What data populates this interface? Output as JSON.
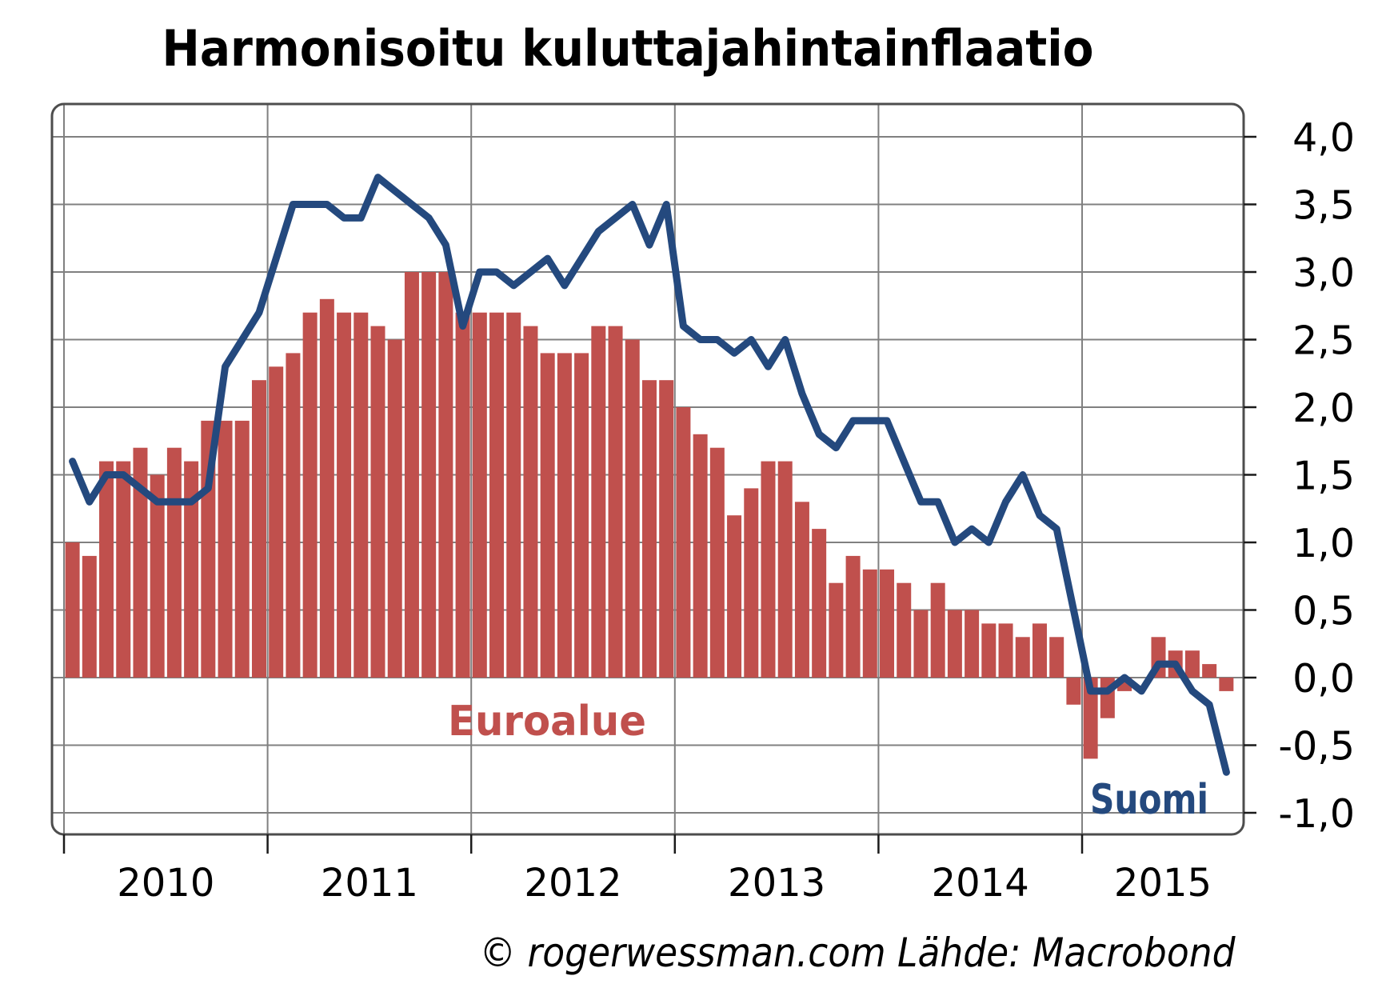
{
  "title": "Harmonisoitu kuluttajahintainflaatio",
  "footer_credit": "© rogerwessman.com Lähde: Macrobond",
  "colors": {
    "bars": "#C0504D",
    "line": "#24497E",
    "bar_label_text": "#C0504D",
    "line_label_text": "#24497E",
    "grid": "#808080",
    "border": "#4D4D4D",
    "tick": "#1A1A1A",
    "background": "#FFFFFF",
    "text": "#000000"
  },
  "chart_data": {
    "type": "bar+line",
    "frequency": "monthly",
    "x_start": "2010-01",
    "x_end": "2015-09",
    "ylim": [
      -1.0,
      4.0
    ],
    "grid": true,
    "legend": "inline-labels",
    "x_tick_labels": [
      "2010",
      "2011",
      "2012",
      "2013",
      "2014",
      "2015"
    ],
    "y_ticks": [
      {
        "value": 4.0,
        "label": "4,0"
      },
      {
        "value": 3.5,
        "label": "3,5"
      },
      {
        "value": 3.0,
        "label": "3,0"
      },
      {
        "value": 2.5,
        "label": "2,5"
      },
      {
        "value": 2.0,
        "label": "2,0"
      },
      {
        "value": 1.5,
        "label": "1,5"
      },
      {
        "value": 1.0,
        "label": "1,0"
      },
      {
        "value": 0.5,
        "label": "0,5"
      },
      {
        "value": 0.0,
        "label": "0,0"
      },
      {
        "value": -0.5,
        "label": "-0,5"
      },
      {
        "value": -1.0,
        "label": "-1,0"
      }
    ],
    "series": [
      {
        "name": "Euroalue",
        "type": "bar",
        "color": "#C0504D",
        "values": [
          1.0,
          0.9,
          1.6,
          1.6,
          1.7,
          1.5,
          1.7,
          1.6,
          1.9,
          1.9,
          1.9,
          2.2,
          2.3,
          2.4,
          2.7,
          2.8,
          2.7,
          2.7,
          2.6,
          2.5,
          3.0,
          3.0,
          3.0,
          2.7,
          2.7,
          2.7,
          2.7,
          2.6,
          2.4,
          2.4,
          2.4,
          2.6,
          2.6,
          2.5,
          2.2,
          2.2,
          2.0,
          1.8,
          1.7,
          1.2,
          1.4,
          1.6,
          1.6,
          1.3,
          1.1,
          0.7,
          0.9,
          0.8,
          0.8,
          0.7,
          0.5,
          0.7,
          0.5,
          0.5,
          0.4,
          0.4,
          0.3,
          0.4,
          0.3,
          -0.2,
          -0.6,
          -0.3,
          -0.1,
          0.0,
          0.3,
          0.2,
          0.2,
          0.1,
          -0.1
        ]
      },
      {
        "name": "Suomi",
        "type": "line",
        "color": "#24497E",
        "values": [
          1.6,
          1.3,
          1.5,
          1.5,
          1.4,
          1.3,
          1.3,
          1.3,
          1.4,
          2.3,
          2.5,
          2.7,
          3.1,
          3.5,
          3.5,
          3.5,
          3.4,
          3.4,
          3.7,
          3.6,
          3.5,
          3.4,
          3.2,
          2.6,
          3.0,
          3.0,
          2.9,
          3.0,
          3.1,
          2.9,
          3.1,
          3.3,
          3.4,
          3.5,
          3.2,
          3.5,
          2.6,
          2.5,
          2.5,
          2.4,
          2.5,
          2.3,
          2.5,
          2.1,
          1.8,
          1.7,
          1.9,
          1.9,
          1.9,
          1.6,
          1.3,
          1.3,
          1.0,
          1.1,
          1.0,
          1.3,
          1.5,
          1.2,
          1.1,
          0.5,
          -0.1,
          -0.1,
          0.0,
          -0.1,
          0.1,
          0.1,
          -0.1,
          -0.2,
          -0.7
        ]
      }
    ]
  }
}
